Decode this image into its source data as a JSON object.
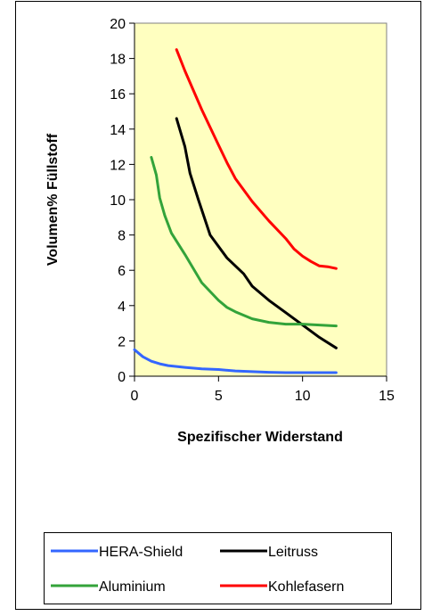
{
  "chart_data": {
    "type": "line",
    "title": "",
    "xlabel": "Spezifischer Widerstand",
    "ylabel": "Volumen% Füllstoff",
    "xlim": [
      0,
      15
    ],
    "ylim": [
      0,
      20
    ],
    "xticks": [
      0,
      5,
      10,
      15
    ],
    "yticks": [
      0,
      2,
      4,
      6,
      8,
      10,
      12,
      14,
      16,
      18,
      20
    ],
    "plot_background": "#FFFFC0",
    "grid": false,
    "legend_position": "bottom",
    "series": [
      {
        "name": "HERA-Shield",
        "color": "#3366FF",
        "points": [
          [
            0,
            1.5
          ],
          [
            0.5,
            1.1
          ],
          [
            1,
            0.85
          ],
          [
            1.5,
            0.7
          ],
          [
            2,
            0.6
          ],
          [
            2.5,
            0.55
          ],
          [
            3,
            0.5
          ],
          [
            4,
            0.42
          ],
          [
            5,
            0.38
          ],
          [
            6,
            0.3
          ],
          [
            7,
            0.26
          ],
          [
            8,
            0.22
          ],
          [
            9,
            0.2
          ],
          [
            10,
            0.2
          ],
          [
            11,
            0.2
          ],
          [
            12,
            0.2
          ]
        ]
      },
      {
        "name": "Leitruss",
        "color": "#000000",
        "points": [
          [
            2.5,
            14.6
          ],
          [
            3,
            13
          ],
          [
            3.3,
            11.5
          ],
          [
            3.8,
            10
          ],
          [
            4.5,
            8
          ],
          [
            5.5,
            6.7
          ],
          [
            6.5,
            5.8
          ],
          [
            7,
            5.1
          ],
          [
            8,
            4.3
          ],
          [
            9,
            3.6
          ],
          [
            10,
            2.9
          ],
          [
            11,
            2.2
          ],
          [
            12,
            1.6
          ]
        ]
      },
      {
        "name": "Aluminium",
        "color": "#33A33A",
        "points": [
          [
            1,
            12.4
          ],
          [
            1.3,
            11.4
          ],
          [
            1.5,
            10.1
          ],
          [
            1.8,
            9.1
          ],
          [
            2.2,
            8.1
          ],
          [
            3,
            6.9
          ],
          [
            4,
            5.3
          ],
          [
            5,
            4.3
          ],
          [
            5.5,
            3.9
          ],
          [
            6,
            3.65
          ],
          [
            7,
            3.25
          ],
          [
            8,
            3.05
          ],
          [
            9,
            2.95
          ],
          [
            10,
            2.95
          ],
          [
            11,
            2.9
          ],
          [
            12,
            2.85
          ]
        ]
      },
      {
        "name": "Kohlefasern",
        "color": "#FF0000",
        "points": [
          [
            2.5,
            18.5
          ],
          [
            3,
            17.3
          ],
          [
            4,
            15.1
          ],
          [
            5,
            13.1
          ],
          [
            5.5,
            12.1
          ],
          [
            6,
            11.2
          ],
          [
            7,
            9.9
          ],
          [
            8,
            8.8
          ],
          [
            9,
            7.8
          ],
          [
            9.5,
            7.2
          ],
          [
            10,
            6.8
          ],
          [
            10.5,
            6.5
          ],
          [
            11,
            6.25
          ],
          [
            11.5,
            6.2
          ],
          [
            12,
            6.1
          ]
        ]
      }
    ]
  }
}
